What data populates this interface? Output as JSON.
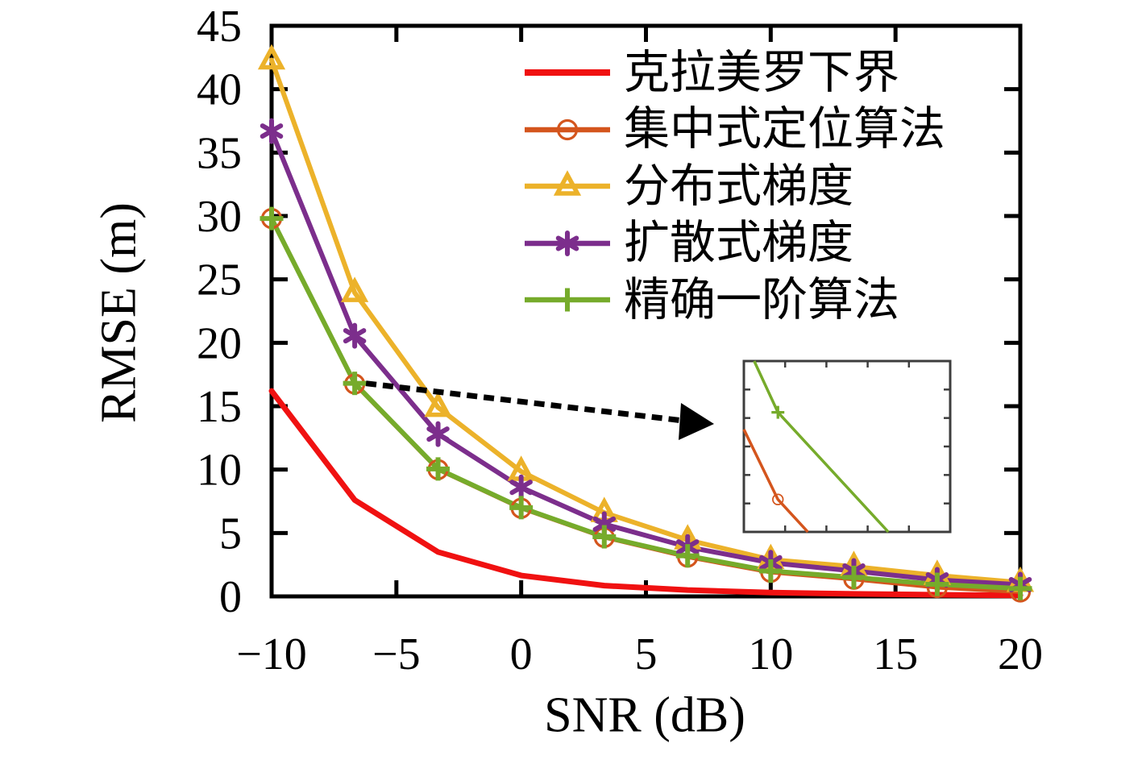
{
  "chart_data": {
    "type": "line",
    "xlabel": "SNR (dB)",
    "ylabel": "RMSE (m)",
    "xlim": [
      -10,
      20
    ],
    "ylim": [
      0,
      45
    ],
    "x_ticks": [
      -10,
      -5,
      0,
      5,
      10,
      15,
      20
    ],
    "y_ticks": [
      0,
      5,
      10,
      15,
      20,
      25,
      30,
      35,
      40,
      45
    ],
    "grid": false,
    "legend_position": "top-right-inside",
    "frame_color": "#000000",
    "x": [
      -10,
      -6.67,
      -3.33,
      0,
      3.33,
      6.67,
      10,
      13.33,
      16.67,
      20
    ],
    "series": [
      {
        "key": "crlb",
        "name": "克拉美罗下界",
        "color": "#f01111",
        "marker": "none",
        "line_width": 7,
        "values": [
          16.2,
          7.6,
          3.5,
          1.65,
          0.85,
          0.5,
          0.3,
          0.2,
          0.13,
          0.08
        ]
      },
      {
        "key": "centralized",
        "name": "集中式定位算法",
        "color": "#d4551d",
        "marker": "circle-open",
        "line_width": 5,
        "values": [
          29.8,
          16.75,
          10.0,
          6.95,
          4.65,
          3.1,
          1.9,
          1.35,
          0.7,
          0.35
        ]
      },
      {
        "key": "distributed-gradient",
        "name": "分布式梯度",
        "color": "#ecb22a",
        "marker": "triangle-open",
        "line_width": 6,
        "values": [
          42.3,
          23.95,
          14.9,
          9.85,
          6.6,
          4.45,
          2.9,
          2.35,
          1.65,
          1.1
        ]
      },
      {
        "key": "diffusion-gradient",
        "name": "扩散式梯度",
        "color": "#7c2e8c",
        "marker": "asterisk",
        "line_width": 6,
        "values": [
          36.7,
          20.55,
          12.8,
          8.6,
          5.7,
          3.9,
          2.65,
          2.0,
          1.3,
          0.92
        ]
      },
      {
        "key": "exact-first-order",
        "name": "精确一阶算法",
        "color": "#76ab2b",
        "marker": "plus",
        "line_width": 6,
        "values": [
          29.8,
          16.8,
          10.05,
          7.0,
          4.7,
          3.2,
          2.0,
          1.5,
          0.95,
          0.62
        ]
      }
    ],
    "inset": {
      "border_color": "#3d3d3d",
      "x_tick_count": 6,
      "y_tick_count": 7,
      "series": [
        {
          "key": "centralized",
          "color": "#d4551d",
          "marker": "circle-open",
          "points": [
            [
              0.0,
              0.4
            ],
            [
              0.165,
              0.81
            ],
            [
              0.31,
              1.0
            ]
          ],
          "marker_at": [
            0.165,
            0.81
          ]
        },
        {
          "key": "exact-first-order",
          "color": "#76ab2b",
          "marker": "plus",
          "points": [
            [
              0.05,
              0.0
            ],
            [
              0.165,
              0.3
            ],
            [
              0.7,
              1.0
            ]
          ],
          "marker_at": [
            0.165,
            0.3
          ]
        }
      ]
    },
    "annotation": {
      "type": "zoom-arrow",
      "style": "dashed",
      "color": "#000000",
      "from_point": {
        "snr": -6.67,
        "rmse": 16.8
      }
    }
  }
}
